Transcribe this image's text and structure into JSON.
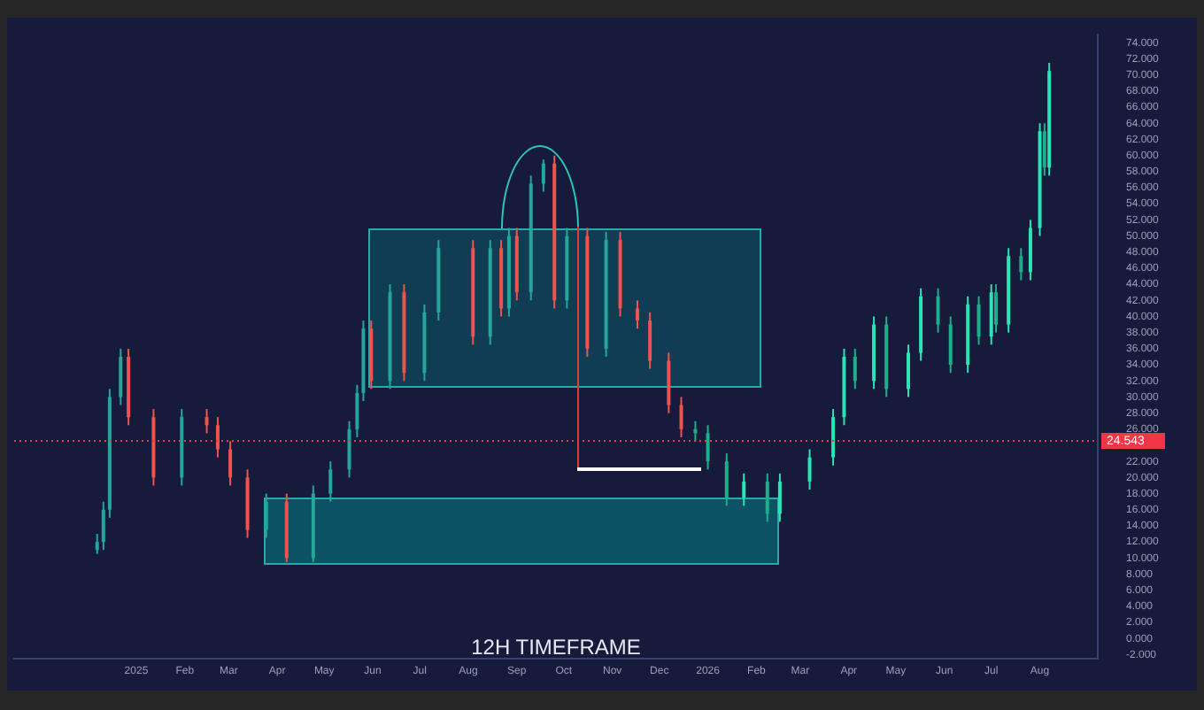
{
  "chart_data": {
    "type": "candlestick",
    "annotations": [
      "12H TIMEFRAME"
    ],
    "series": [
      {
        "x": [
          "2024-12-07",
          "2024-12-11",
          "2024-12-15",
          "2024-12-22",
          "2024-12-27",
          "2025-01-12",
          "2025-01-30",
          "2025-02-15",
          "2025-02-22",
          "2025-03-02",
          "2025-03-13",
          "2025-03-25",
          "2025-04-07",
          "2025-04-24",
          "2025-05-05",
          "2025-05-17",
          "2025-05-22",
          "2025-05-26",
          "2025-05-31",
          "2025-06-12",
          "2025-06-21",
          "2025-07-04",
          "2025-07-13",
          "2025-08-04",
          "2025-08-15",
          "2025-08-22",
          "2025-08-27",
          "2025-09-01",
          "2025-09-10",
          "2025-09-18",
          "2025-09-25",
          "2025-10-03",
          "2025-10-16",
          "2025-10-28",
          "2025-11-06",
          "2025-11-17",
          "2025-11-25",
          "2025-12-07",
          "2025-12-15"
        ],
        "ohlc": [
          [
            11,
            13,
            10.5,
            12
          ],
          [
            12,
            17,
            11,
            16
          ],
          [
            16,
            31,
            15,
            30
          ],
          [
            30,
            36,
            29,
            35
          ],
          [
            35,
            36,
            26.5,
            27.5
          ],
          [
            27.5,
            28.5,
            19,
            20
          ],
          [
            20,
            28.5,
            19,
            27.5
          ],
          [
            27.5,
            28.5,
            25.5,
            26.5
          ],
          [
            26.5,
            27.5,
            22.5,
            23.5
          ],
          [
            23.5,
            24.5,
            19,
            20
          ],
          [
            20,
            21,
            12.5,
            13.5
          ],
          [
            13.5,
            18,
            12.5,
            17
          ],
          [
            17,
            18,
            9.5,
            10
          ],
          [
            10,
            19,
            9.5,
            18
          ],
          [
            18,
            22,
            17,
            21
          ],
          [
            21,
            27,
            20,
            26
          ],
          [
            26,
            31.5,
            25,
            30.5
          ],
          [
            30.5,
            39.5,
            29.5,
            38.5
          ],
          [
            38.5,
            39.5,
            31,
            32
          ],
          [
            32,
            44,
            31,
            43
          ],
          [
            43,
            44,
            32,
            33
          ],
          [
            33,
            41.5,
            32,
            40.5
          ],
          [
            40.5,
            49.5,
            39.5,
            48.5
          ],
          [
            48.5,
            49.5,
            36.5,
            37.5
          ],
          [
            37.5,
            49.5,
            36.5,
            48.5
          ],
          [
            48.5,
            49.5,
            40,
            41
          ],
          [
            41,
            51,
            40,
            50
          ],
          [
            50,
            51,
            42,
            43
          ],
          [
            43,
            57.5,
            42,
            56.5
          ],
          [
            56.5,
            59.5,
            55.5,
            59
          ],
          [
            59,
            60,
            41,
            42
          ],
          [
            42,
            51,
            41,
            50
          ],
          [
            50,
            51,
            35,
            36
          ],
          [
            36,
            50.5,
            35,
            49.5
          ],
          [
            49.5,
            50.5,
            40,
            41
          ],
          [
            41,
            42,
            38.5,
            39.5
          ],
          [
            39.5,
            40.5,
            33.5,
            34.5
          ],
          [
            34.5,
            35.5,
            28,
            29
          ],
          [
            29,
            30,
            25,
            26
          ]
        ],
        "colors": [
          "#26a69a",
          "#26a69a",
          "#26a69a",
          "#26a69a",
          "#ef5350",
          "#ef5350",
          "#26a69a",
          "#ef5350",
          "#ef5350",
          "#ef5350",
          "#ef5350",
          "#26a69a",
          "#ef5350",
          "#26a69a",
          "#26a69a",
          "#26a69a",
          "#26a69a",
          "#26a69a",
          "#ef5350",
          "#26a69a",
          "#ef5350",
          "#26a69a",
          "#26a69a",
          "#ef5350",
          "#26a69a",
          "#ef5350",
          "#26a69a",
          "#ef5350",
          "#26a69a",
          "#26a69a",
          "#ef5350",
          "#26a69a",
          "#ef5350",
          "#26a69a",
          "#ef5350",
          "#ef5350",
          "#ef5350",
          "#ef5350",
          "#ef5350"
        ]
      },
      {
        "colors": [
          "#1fae8c",
          "#1fae8c",
          "#1fae8c",
          "#2de2b5",
          "#1fae8c",
          "#2de2b5",
          "#2de2b5",
          "#2de2b5",
          "#2de2b5",
          "#1fae8c",
          "#2de2b5",
          "#1fae8c",
          "#2de2b5",
          "#2de2b5",
          "#1fae8c",
          "#1fae8c",
          "#2de2b5",
          "#1fae8c",
          "#2de2b5",
          "#1fae8c",
          "#2de2b5",
          "#1fae8c",
          "#2de2b5",
          "#2de2b5",
          "#1fae8c",
          "#2de2b5"
        ],
        "x": [
          "2025-12-24",
          "2026-01-01",
          "2026-01-13",
          "2026-01-24",
          "2026-02-08",
          "2026-02-16",
          "2026-03-07",
          "2026-03-22",
          "2026-03-29",
          "2026-04-05",
          "2026-04-17",
          "2026-04-25",
          "2026-05-09",
          "2026-05-17",
          "2026-05-28",
          "2026-06-05",
          "2026-06-16",
          "2026-06-23",
          "2026-07-01",
          "2026-07-04",
          "2026-07-12",
          "2026-07-20",
          "2026-07-26",
          "2026-08-01",
          "2026-08-04",
          "2026-08-07"
        ],
        "ohlc": [
          [
            26,
            27,
            24.5,
            25.5
          ],
          [
            25.5,
            26.5,
            21,
            22
          ],
          [
            22,
            23,
            16.5,
            17.5
          ],
          [
            17.5,
            20.5,
            16.5,
            19.5
          ],
          [
            19.5,
            20.5,
            14.5,
            15.5
          ],
          [
            15.5,
            20.5,
            14.5,
            19.5
          ],
          [
            19.5,
            23.5,
            18.5,
            22.5
          ],
          [
            22.5,
            28.5,
            21.5,
            27.5
          ],
          [
            27.5,
            36,
            26.5,
            35
          ],
          [
            35,
            36,
            31,
            32
          ],
          [
            32,
            40,
            31,
            39
          ],
          [
            39,
            40,
            30,
            31
          ],
          [
            31,
            36.5,
            30,
            35.5
          ],
          [
            35.5,
            43.5,
            34.5,
            42.5
          ],
          [
            42.5,
            43.5,
            38,
            39
          ],
          [
            39,
            40,
            33,
            34
          ],
          [
            34,
            42.5,
            33,
            41.5
          ],
          [
            41.5,
            42.5,
            36.5,
            37.5
          ],
          [
            37.5,
            44,
            36.5,
            43
          ],
          [
            43,
            44,
            38,
            39
          ],
          [
            39,
            48.5,
            38,
            47.5
          ],
          [
            47.5,
            48.5,
            44.5,
            45.5
          ],
          [
            45.5,
            52,
            44.5,
            51
          ],
          [
            51,
            64,
            50,
            63
          ],
          [
            63,
            64,
            57.5,
            58.5
          ],
          [
            58.5,
            71.5,
            57.5,
            70.5
          ]
        ]
      }
    ],
    "ylim": [
      -2.5,
      75
    ],
    "yticks": [
      {
        "value": -2,
        "label": "-2.000"
      },
      {
        "value": 0,
        "label": "0.000"
      },
      {
        "value": 2,
        "label": "2.000"
      },
      {
        "value": 4,
        "label": "4.000"
      },
      {
        "value": 6,
        "label": "6.000"
      },
      {
        "value": 8,
        "label": "8.000"
      },
      {
        "value": 10,
        "label": "10.000"
      },
      {
        "value": 12,
        "label": "12.000"
      },
      {
        "value": 14,
        "label": "14.000"
      },
      {
        "value": 16,
        "label": "16.000"
      },
      {
        "value": 18,
        "label": "18.000"
      },
      {
        "value": 20,
        "label": "20.000"
      },
      {
        "value": 22,
        "label": "22.000"
      },
      {
        "value": 26,
        "label": "26.000"
      },
      {
        "value": 28,
        "label": "28.000"
      },
      {
        "value": 30,
        "label": "30.000"
      },
      {
        "value": 32,
        "label": "32.000"
      },
      {
        "value": 34,
        "label": "34.000"
      },
      {
        "value": 36,
        "label": "36.000"
      },
      {
        "value": 38,
        "label": "38.000"
      },
      {
        "value": 40,
        "label": "40.000"
      },
      {
        "value": 42,
        "label": "42.000"
      },
      {
        "value": 44,
        "label": "44.000"
      },
      {
        "value": 46,
        "label": "46.000"
      },
      {
        "value": 48,
        "label": "48.000"
      },
      {
        "value": 50,
        "label": "50.000"
      },
      {
        "value": 52,
        "label": "52.000"
      },
      {
        "value": 54,
        "label": "54.000"
      },
      {
        "value": 56,
        "label": "56.000"
      },
      {
        "value": 58,
        "label": "58.000"
      },
      {
        "value": 60,
        "label": "60.000"
      },
      {
        "value": 62,
        "label": "62.000"
      },
      {
        "value": 64,
        "label": "64.000"
      },
      {
        "value": 66,
        "label": "66.000"
      },
      {
        "value": 68,
        "label": "68.000"
      },
      {
        "value": 70,
        "label": "70.000"
      },
      {
        "value": 72,
        "label": "72.000"
      },
      {
        "value": 74,
        "label": "74.000"
      }
    ],
    "xlim": [
      "2024-10-15",
      "2026-09-07"
    ],
    "xticks": [
      {
        "value": "2025-01-01",
        "label": "2025"
      },
      {
        "value": "2025-02-01",
        "label": "Feb"
      },
      {
        "value": "2025-03-01",
        "label": "Mar"
      },
      {
        "value": "2025-04-01",
        "label": "Apr"
      },
      {
        "value": "2025-05-01",
        "label": "May"
      },
      {
        "value": "2025-06-01",
        "label": "Jun"
      },
      {
        "value": "2025-07-01",
        "label": "Jul"
      },
      {
        "value": "2025-08-01",
        "label": "Aug"
      },
      {
        "value": "2025-09-01",
        "label": "Sep"
      },
      {
        "value": "2025-10-01",
        "label": "Oct"
      },
      {
        "value": "2025-11-01",
        "label": "Nov"
      },
      {
        "value": "2025-12-01",
        "label": "Dec"
      },
      {
        "value": "2026-01-01",
        "label": "2026"
      },
      {
        "value": "2026-02-01",
        "label": "Feb"
      },
      {
        "value": "2026-03-01",
        "label": "Mar"
      },
      {
        "value": "2026-04-01",
        "label": "Apr"
      },
      {
        "value": "2026-05-01",
        "label": "May"
      },
      {
        "value": "2026-06-01",
        "label": "Jun"
      },
      {
        "value": "2026-07-01",
        "label": "Jul"
      },
      {
        "value": "2026-08-01",
        "label": "Aug"
      }
    ],
    "ref_lines": [
      {
        "axis": "y",
        "value": 24.543,
        "label": "24.543",
        "color": "#f23645",
        "line_style": "dotted"
      }
    ],
    "grid": false,
    "legend": false
  }
}
